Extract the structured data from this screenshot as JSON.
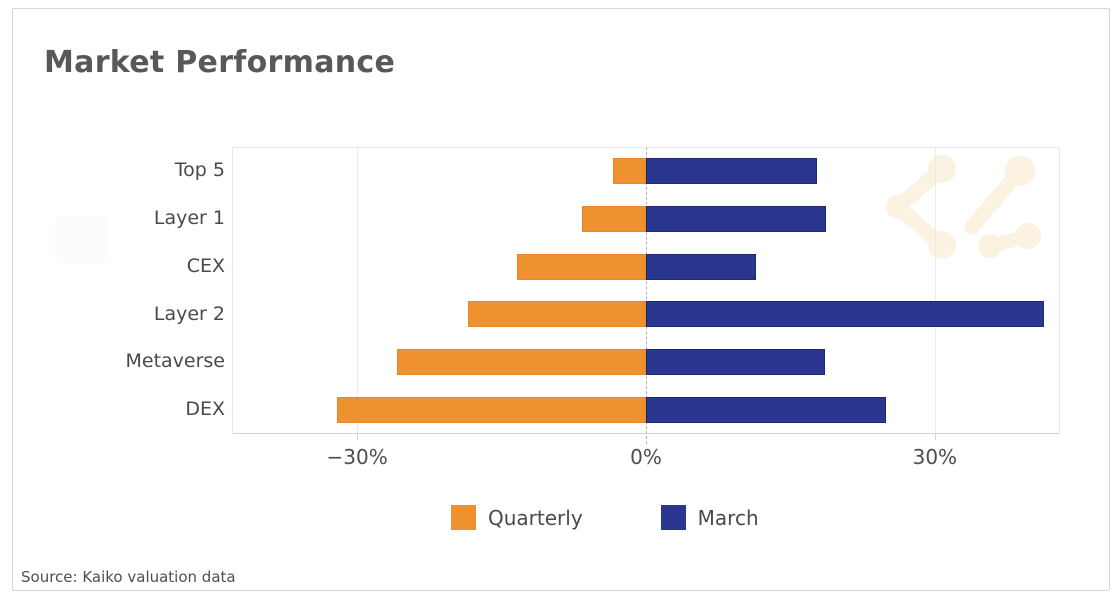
{
  "card": {
    "title": "Market Performance",
    "source": "Source: Kaiko valuation data"
  },
  "chart_data": {
    "type": "bar",
    "orientation": "horizontal",
    "title": "Market Performance",
    "categories": [
      "Top 5",
      "Layer 1",
      "CEX",
      "Layer 2",
      "Metaverse",
      "DEX"
    ],
    "series": [
      {
        "name": "Quarterly",
        "color": "#f0912f",
        "border_color": "#e8862a",
        "values": [
          -3.4,
          -6.6,
          -13.4,
          -18.5,
          -25.9,
          -32.1
        ]
      },
      {
        "name": "March",
        "color": "#2b3690",
        "border_color": "#1c2870",
        "values": [
          17.8,
          18.7,
          11.4,
          41.3,
          18.6,
          24.9
        ]
      }
    ],
    "xlabel": "",
    "ylabel": "",
    "xlim": [
      -43,
      43
    ],
    "x_ticks": [
      {
        "value": -30,
        "label": "−30%"
      },
      {
        "value": 0,
        "label": "0%"
      },
      {
        "value": 30,
        "label": "30%"
      }
    ],
    "zero_line_style": "dashed",
    "grid": "vertical-light",
    "legend_position": "bottom",
    "legend_labels": [
      "Quarterly",
      "March"
    ],
    "watermarks": [
      "kaiko-logo",
      "faint-square"
    ],
    "source_caption": "Source: Kaiko valuation data"
  },
  "colors": {
    "quarterly": "#f0912f",
    "march": "#2b3690",
    "title_text": "#57585a",
    "axis_text": "#4a4a4c",
    "gridline": "#ececec",
    "zero_line": "#b0b0b0",
    "card_border": "#d6d6d6",
    "watermark_cream": "#fbf2e2"
  }
}
